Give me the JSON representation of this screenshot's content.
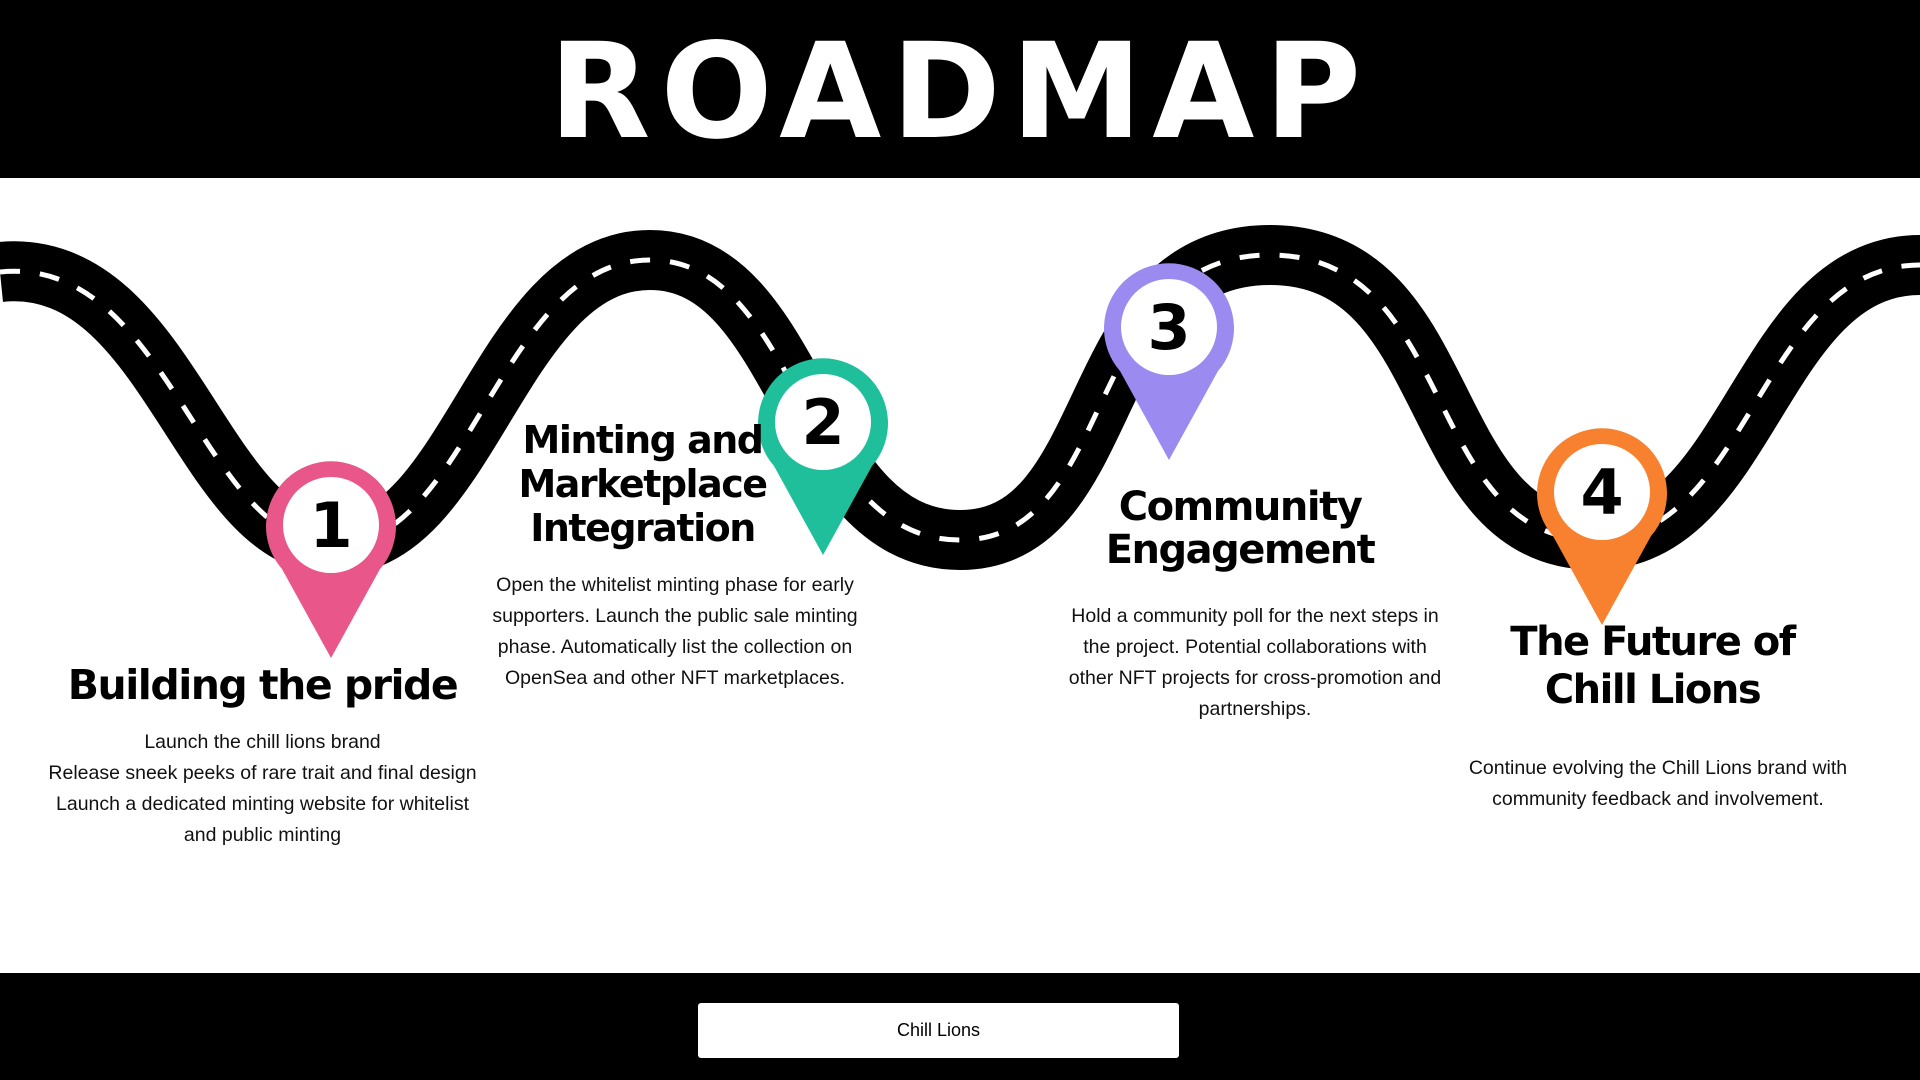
{
  "header": {
    "title": "ROADMAP"
  },
  "steps": [
    {
      "number": "1",
      "color": "#E8568A",
      "title_lines": [
        "Building the pride"
      ],
      "description_lines": [
        "Launch the  chill lions brand",
        "Release sneek peeks of rare trait and final design",
        "Launch a dedicated minting website for  whitelist",
        "and  public minting"
      ]
    },
    {
      "number": "2",
      "color": "#1FBF9B",
      "title_lines": [
        "Minting and",
        "Marketplace",
        "Integration"
      ],
      "description_lines": [
        "Open the whitelist minting phase for early",
        "supporters. Launch the public sale minting",
        "phase. Automatically list the collection on",
        "OpenSea and other NFT marketplaces."
      ]
    },
    {
      "number": "3",
      "color": "#9B8AF0",
      "title_lines": [
        "Community",
        "Engagement"
      ],
      "description_lines": [
        "Hold a community poll for the next steps in",
        "the project. Potential collaborations with",
        "other NFT projects for cross-promotion and",
        "partnerships."
      ]
    },
    {
      "number": "4",
      "color": "#F7812F",
      "title_lines": [
        "The Future of",
        "Chill Lions"
      ],
      "description_lines": [
        "Continue evolving the Chill Lions brand with",
        "community feedback and involvement."
      ]
    }
  ],
  "footer": {
    "label": "Chill Lions"
  }
}
